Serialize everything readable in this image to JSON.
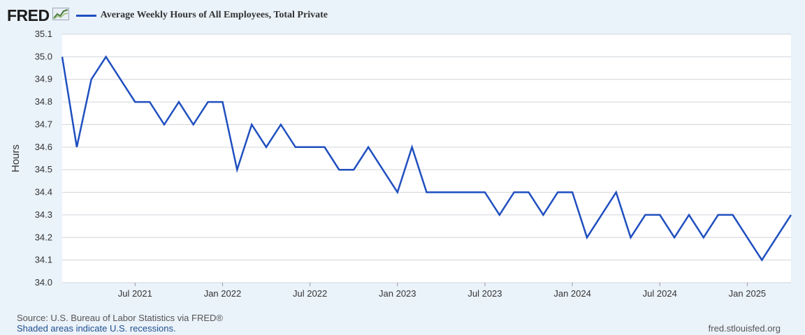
{
  "logo": {
    "text": "FRED",
    "icon": "line-graph-icon"
  },
  "chart_data": {
    "type": "line",
    "title": "",
    "xlabel": "",
    "ylabel": "Hours",
    "ylim": [
      34.0,
      35.1
    ],
    "yticks": [
      "34.0",
      "34.1",
      "34.2",
      "34.3",
      "34.4",
      "34.5",
      "34.6",
      "34.7",
      "34.8",
      "34.9",
      "35.0",
      "35.1"
    ],
    "xticks": [
      {
        "label": "Jul 2021",
        "date": "2021-07"
      },
      {
        "label": "Jan 2022",
        "date": "2022-01"
      },
      {
        "label": "Jul 2022",
        "date": "2022-07"
      },
      {
        "label": "Jan 2023",
        "date": "2023-01"
      },
      {
        "label": "Jul 2023",
        "date": "2023-07"
      },
      {
        "label": "Jan 2024",
        "date": "2024-01"
      },
      {
        "label": "Jul 2024",
        "date": "2024-07"
      },
      {
        "label": "Jan 2025",
        "date": "2025-01"
      }
    ],
    "grid": true,
    "legend_position": "top-left",
    "line_color": "#1f4fbf",
    "series": [
      {
        "name": "Average Weekly Hours of All Employees, Total Private",
        "x": [
          "2021-02",
          "2021-03",
          "2021-04",
          "2021-05",
          "2021-06",
          "2021-07",
          "2021-08",
          "2021-09",
          "2021-10",
          "2021-11",
          "2021-12",
          "2022-01",
          "2022-02",
          "2022-03",
          "2022-04",
          "2022-05",
          "2022-06",
          "2022-07",
          "2022-08",
          "2022-09",
          "2022-10",
          "2022-11",
          "2022-12",
          "2023-01",
          "2023-02",
          "2023-03",
          "2023-04",
          "2023-05",
          "2023-06",
          "2023-07",
          "2023-08",
          "2023-09",
          "2023-10",
          "2023-11",
          "2023-12",
          "2024-01",
          "2024-02",
          "2024-03",
          "2024-04",
          "2024-05",
          "2024-06",
          "2024-07",
          "2024-08",
          "2024-09",
          "2024-10",
          "2024-11",
          "2024-12",
          "2025-01",
          "2025-02",
          "2025-03",
          "2025-04"
        ],
        "values": [
          35.0,
          34.6,
          34.9,
          35.0,
          34.9,
          34.8,
          34.8,
          34.7,
          34.8,
          34.7,
          34.8,
          34.8,
          34.5,
          34.7,
          34.6,
          34.7,
          34.6,
          34.6,
          34.6,
          34.5,
          34.5,
          34.6,
          34.5,
          34.4,
          34.6,
          34.4,
          34.4,
          34.4,
          34.4,
          34.4,
          34.3,
          34.4,
          34.4,
          34.3,
          34.4,
          34.4,
          34.2,
          34.3,
          34.4,
          34.2,
          34.3,
          34.3,
          34.2,
          34.3,
          34.2,
          34.3,
          34.3,
          34.2,
          34.1,
          34.2,
          34.3
        ]
      }
    ]
  },
  "footer": {
    "source": "Source: U.S. Bureau of Labor Statistics via FRED®",
    "recessions": "Shaded areas indicate U.S. recessions.",
    "url": "fred.stlouisfed.org"
  }
}
